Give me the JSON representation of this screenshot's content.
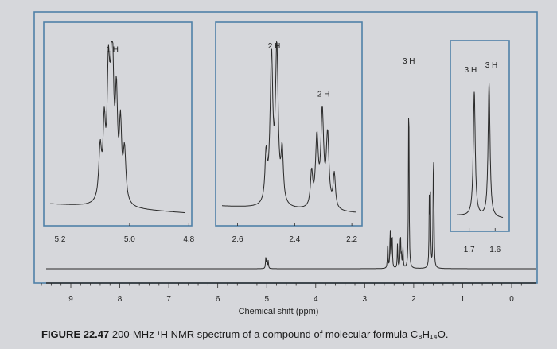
{
  "chart_data": {
    "type": "line",
    "title": "",
    "xlabel": "Chemical shift (ppm)",
    "ylabel": "",
    "x_axis_reversed": true,
    "xlim": [
      9.8,
      -0.3
    ],
    "major_ticks": [
      9,
      8,
      7,
      6,
      5,
      4,
      3,
      2,
      1,
      0
    ],
    "peaks": [
      {
        "shift": 5.0,
        "integration": "",
        "height": 0.05
      },
      {
        "shift": 2.45,
        "integration": "2 H",
        "height": 0.05
      },
      {
        "shift": 2.25,
        "integration": "2 H",
        "height": 0.05
      },
      {
        "shift": 2.1,
        "integration": "3 H",
        "height": 0.95
      },
      {
        "shift": 1.68,
        "integration": "3 H",
        "height": 0.33
      },
      {
        "shift": 1.6,
        "integration": "3 H",
        "height": 0.33
      }
    ],
    "insets": [
      {
        "range": [
          5.2,
          4.8
        ],
        "tick_labels": [
          "5.2",
          "5.0",
          "4.8"
        ],
        "integration_labels": [
          "1 H"
        ]
      },
      {
        "range": [
          2.6,
          2.2
        ],
        "tick_labels": [
          "2.6",
          "2.4",
          "2.2"
        ],
        "integration_labels": [
          "2 H",
          "2 H"
        ]
      },
      {
        "range": [
          1.75,
          1.55
        ],
        "tick_labels": [
          "1.7",
          "1.6"
        ],
        "integration_labels": [
          "3 H",
          "3 H"
        ]
      }
    ],
    "main_integration_labels": [
      "3 H"
    ],
    "tick_labels": [
      "9",
      "8",
      "7",
      "6",
      "5",
      "4",
      "3",
      "2",
      "1",
      "0"
    ]
  },
  "caption": {
    "figure": "FIGURE 22.47",
    "text": "200-MHz ¹H NMR spectrum of a compound of molecular formula C₈H₁₄O."
  },
  "colors": {
    "background": "#d6d7db",
    "frame": "#4f80a8",
    "trace": "#2a2a2a"
  }
}
